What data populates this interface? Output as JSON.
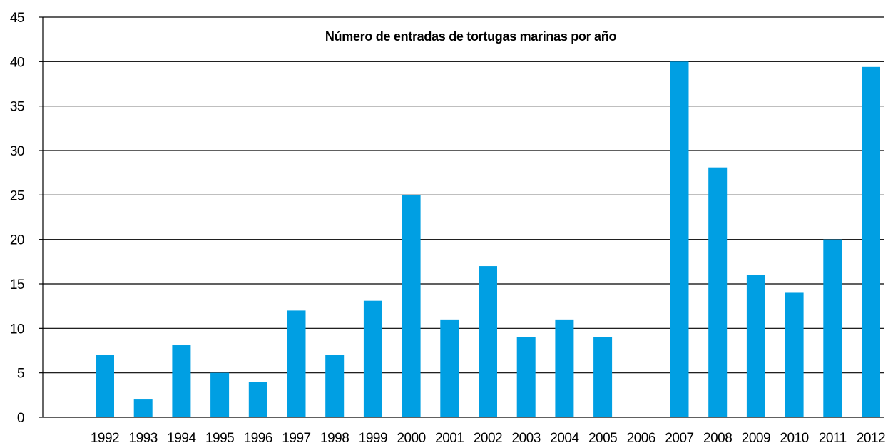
{
  "chart_data": {
    "type": "bar",
    "title": "Número de entradas de tortugas marinas por año",
    "categories": [
      "1992",
      "1993",
      "1994",
      "1995",
      "1996",
      "1997",
      "1998",
      "1999",
      "2000",
      "2001",
      "2002",
      "2003",
      "2004",
      "2005",
      "2006",
      "2007",
      "2008",
      "2009",
      "2010",
      "2011",
      "2012"
    ],
    "values": [
      7,
      2,
      8.1,
      5,
      4,
      12,
      7,
      13.1,
      25,
      11,
      17,
      9,
      11,
      9,
      null,
      40,
      28.1,
      16,
      14,
      20,
      39.4
    ],
    "color": "#009fe3",
    "ylim": [
      0,
      45
    ],
    "yticks": [
      0,
      5,
      10,
      15,
      20,
      25,
      30,
      35,
      40,
      45
    ],
    "grid": true
  }
}
